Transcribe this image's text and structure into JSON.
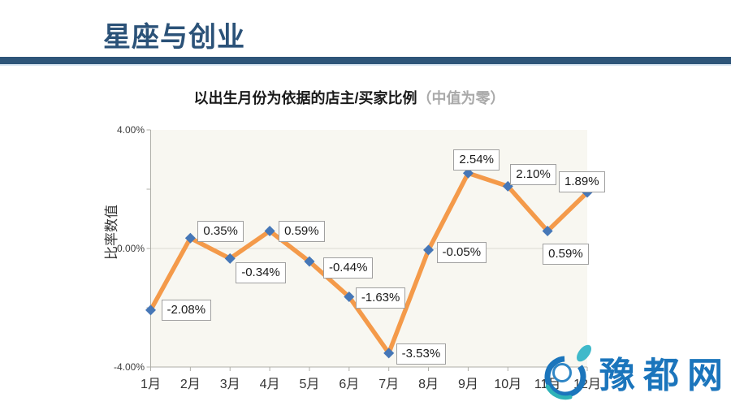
{
  "header": {
    "title": "星座与创业"
  },
  "chart_data": {
    "type": "line",
    "title": "以出生月份为依据的店主/买家比例",
    "title_suffix": "（中值为零）",
    "ylabel": "比率数值",
    "xlabel": "",
    "categories": [
      "1月",
      "2月",
      "3月",
      "4月",
      "5月",
      "6月",
      "7月",
      "8月",
      "9月",
      "10月",
      "11月",
      "12月"
    ],
    "values": [
      -2.08,
      0.35,
      -0.34,
      0.59,
      -0.44,
      -1.63,
      -3.53,
      -0.05,
      2.54,
      2.1,
      0.59,
      1.89
    ],
    "point_labels": [
      "-2.08%",
      "0.35%",
      "-0.34%",
      "0.59%",
      "-0.44%",
      "-1.63%",
      "-3.53%",
      "-0.05%",
      "2.54%",
      "2.10%",
      "0.59%",
      "1.89%"
    ],
    "ylim": [
      -4,
      4
    ],
    "y_ticks": [
      4,
      2,
      0,
      -2,
      -4
    ],
    "y_tick_labels": {
      "4": "4.00%",
      "0": "0.00%",
      "-4": "-4.00%"
    },
    "grid": "horizontal-zero-only",
    "legend": "none",
    "line_color": "#F49A4A",
    "marker_color": "#4677B7",
    "plot_bg": "#F8F7F1",
    "axis_color": "#AFAFA8"
  },
  "watermark": {
    "text": "豫都网",
    "color": "#1B75BC",
    "accent_color": "#3FB9CA"
  }
}
